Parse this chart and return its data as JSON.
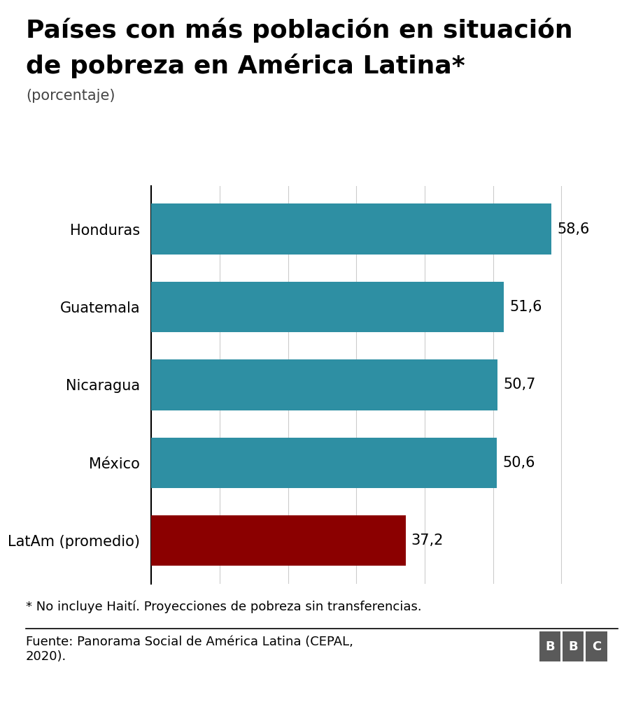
{
  "title_line1": "Países con más población en situación",
  "title_line2": "de pobreza en América Latina*",
  "subtitle": "(porcentaje)",
  "categories": [
    "Honduras",
    "Guatemala",
    "Nicaragua",
    "México",
    "LatAm (promedio)"
  ],
  "values": [
    58.6,
    51.6,
    50.7,
    50.6,
    37.2
  ],
  "bar_colors": [
    "#2e8fa3",
    "#2e8fa3",
    "#2e8fa3",
    "#2e8fa3",
    "#8b0000"
  ],
  "value_labels": [
    "58,6",
    "51,6",
    "50,7",
    "50,6",
    "37,2"
  ],
  "footnote": "* No incluye Haití. Proyecciones de pobreza sin transferencias.",
  "source": "Fuente: Panorama Social de América Latina (CEPAL,\n2020).",
  "xlim": [
    0,
    65
  ],
  "background_color": "#ffffff",
  "grid_color": "#cccccc",
  "bar_label_fontsize": 15,
  "category_fontsize": 15,
  "title_fontsize": 26,
  "subtitle_fontsize": 15,
  "footnote_fontsize": 13,
  "source_fontsize": 13,
  "bar_height": 0.65
}
